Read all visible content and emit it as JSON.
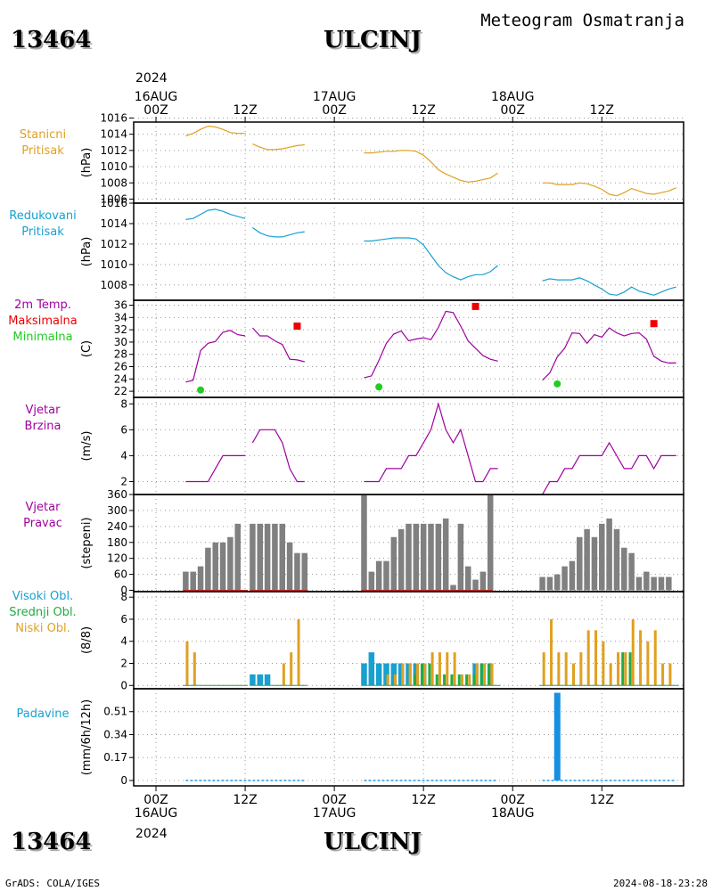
{
  "header": {
    "station_id": "13464",
    "station_name": "ULCINJ",
    "subtitle": "Meteogram Osmatranja"
  },
  "footer": {
    "left": "GrADS: COLA/IGES",
    "right": "2024-08-18-23:28"
  },
  "time_axis": {
    "year_label": "2024",
    "ticks": [
      {
        "hour": 0,
        "lines": [
          "16AUG",
          "00Z"
        ]
      },
      {
        "hour": 12,
        "lines": [
          "12Z"
        ]
      },
      {
        "hour": 24,
        "lines": [
          "17AUG",
          "00Z"
        ]
      },
      {
        "hour": 36,
        "lines": [
          "12Z"
        ]
      },
      {
        "hour": 48,
        "lines": [
          "18AUG",
          "00Z"
        ]
      },
      {
        "hour": 60,
        "lines": [
          "12Z"
        ]
      }
    ],
    "range_hours": [
      -3,
      71
    ]
  },
  "colors": {
    "pressure": "#e0a020",
    "reduced": "#18a0d0",
    "temp": "#a000a0",
    "tmax": "#ee0000",
    "tmin": "#22cc22",
    "wind": "#a000a0",
    "dir_bar": "#808080",
    "cloud_high": "#18a0d0",
    "cloud_mid": "#22aa44",
    "cloud_low": "#e0a020",
    "precip": "#1890e0"
  },
  "chart_data": [
    {
      "type": "line",
      "panel": "station_pressure",
      "labels": [
        "Stanicni",
        "Pritisak"
      ],
      "ylabel": "(hPa)",
      "ylim": [
        1005.5,
        1015.5
      ],
      "yticks": [
        1006,
        1008,
        1010,
        1012,
        1014,
        1016
      ],
      "series": [
        {
          "x": [
            4,
            5,
            6,
            7,
            8,
            9,
            10,
            11,
            12
          ],
          "y": [
            1013.8,
            1014.1,
            1014.6,
            1015.0,
            1014.9,
            1014.6,
            1014.2,
            1014.1,
            1014.1
          ]
        },
        {
          "x": [
            13,
            14,
            15,
            16,
            17,
            18,
            19,
            20
          ],
          "y": [
            1012.8,
            1012.4,
            1012.1,
            1012.1,
            1012.2,
            1012.4,
            1012.6,
            1012.7
          ]
        },
        {
          "x": [
            28,
            29,
            30,
            31,
            32,
            33,
            34,
            35,
            36,
            37,
            38,
            39,
            40,
            41,
            42,
            43,
            44,
            45,
            46
          ],
          "y": [
            1011.7,
            1011.7,
            1011.8,
            1011.9,
            1011.9,
            1012.0,
            1012.0,
            1011.9,
            1011.4,
            1010.6,
            1009.6,
            1009.1,
            1008.7,
            1008.3,
            1008.1,
            1008.2,
            1008.4,
            1008.6,
            1009.2
          ]
        },
        {
          "x": [
            52,
            53,
            54,
            55,
            56,
            57,
            58,
            59,
            60,
            61,
            62,
            63,
            64,
            65,
            66,
            67,
            68,
            69,
            70
          ],
          "y": [
            1008.0,
            1008.0,
            1007.8,
            1007.8,
            1007.8,
            1008.0,
            1007.9,
            1007.6,
            1007.2,
            1006.6,
            1006.4,
            1006.8,
            1007.3,
            1007.0,
            1006.7,
            1006.6,
            1006.8,
            1007.0,
            1007.4
          ]
        }
      ]
    },
    {
      "type": "line",
      "panel": "reduced_pressure",
      "labels": [
        "Redukovani",
        "Pritisak"
      ],
      "ylabel": "(hPa)",
      "ylim": [
        1006.5,
        1016
      ],
      "yticks": [
        1008,
        1010,
        1012,
        1014,
        1016
      ],
      "series": [
        {
          "x": [
            4,
            5,
            6,
            7,
            8,
            9,
            10,
            11,
            12
          ],
          "y": [
            1014.4,
            1014.5,
            1014.9,
            1015.3,
            1015.4,
            1015.2,
            1014.9,
            1014.7,
            1014.5
          ]
        },
        {
          "x": [
            13,
            14,
            15,
            16,
            17,
            18,
            19,
            20
          ],
          "y": [
            1013.6,
            1013.1,
            1012.8,
            1012.7,
            1012.7,
            1012.9,
            1013.1,
            1013.2
          ]
        },
        {
          "x": [
            28,
            29,
            30,
            31,
            32,
            33,
            34,
            35,
            36,
            37,
            38,
            39,
            40,
            41,
            42,
            43,
            44,
            45,
            46
          ],
          "y": [
            1012.3,
            1012.3,
            1012.4,
            1012.5,
            1012.6,
            1012.6,
            1012.6,
            1012.5,
            1011.9,
            1010.9,
            1009.9,
            1009.2,
            1008.8,
            1008.5,
            1008.8,
            1009.0,
            1009.0,
            1009.3,
            1009.9
          ]
        },
        {
          "x": [
            52,
            53,
            54,
            55,
            56,
            57,
            58,
            59,
            60,
            61,
            62,
            63,
            64,
            65,
            66,
            67,
            68,
            69,
            70
          ],
          "y": [
            1008.4,
            1008.6,
            1008.5,
            1008.5,
            1008.5,
            1008.7,
            1008.4,
            1008.0,
            1007.6,
            1007.1,
            1007.0,
            1007.3,
            1007.8,
            1007.4,
            1007.2,
            1007.0,
            1007.3,
            1007.6,
            1007.8
          ]
        }
      ]
    },
    {
      "type": "line",
      "panel": "temperature",
      "labels": [
        "2m Temp.",
        "Maksimalna",
        "Minimalna"
      ],
      "ylabel": "(C)",
      "ylim": [
        21,
        36.8
      ],
      "yticks": [
        22,
        24,
        26,
        28,
        30,
        32,
        34,
        36
      ],
      "series": [
        {
          "x": [
            4,
            5,
            6,
            7,
            8,
            9,
            10,
            11,
            12
          ],
          "y": [
            23.5,
            23.8,
            28.6,
            29.8,
            30.1,
            31.6,
            31.9,
            31.2,
            31.0
          ]
        },
        {
          "x": [
            13,
            14,
            15,
            16,
            17,
            18,
            19,
            20
          ],
          "y": [
            32.3,
            31.0,
            31.0,
            30.2,
            29.6,
            27.2,
            27.1,
            26.8
          ]
        },
        {
          "x": [
            28,
            29,
            30,
            31,
            32,
            33,
            34,
            35,
            36,
            37,
            38,
            39,
            40,
            41,
            42,
            43,
            44,
            45,
            46
          ],
          "y": [
            24.2,
            24.5,
            27.0,
            29.8,
            31.3,
            31.8,
            30.2,
            30.5,
            30.7,
            30.4,
            32.4,
            35.0,
            34.8,
            32.6,
            30.2,
            29.0,
            27.8,
            27.2,
            26.9
          ]
        },
        {
          "x": [
            52,
            53,
            54,
            55,
            56,
            57,
            58,
            59,
            60,
            61,
            62,
            63,
            64,
            65,
            66,
            67,
            68,
            69,
            70
          ],
          "y": [
            23.8,
            25.0,
            27.6,
            29.0,
            31.5,
            31.4,
            29.8,
            31.2,
            30.8,
            32.3,
            31.5,
            31.0,
            31.4,
            31.5,
            30.5,
            27.7,
            26.9,
            26.6,
            26.6
          ]
        }
      ],
      "tmax": [
        {
          "x": 19,
          "y": 32.6
        },
        {
          "x": 43,
          "y": 35.8
        },
        {
          "x": 67,
          "y": 33.0
        }
      ],
      "tmin": [
        {
          "x": 6,
          "y": 22.2
        },
        {
          "x": 30,
          "y": 22.7
        },
        {
          "x": 54,
          "y": 23.2
        }
      ]
    },
    {
      "type": "line",
      "panel": "wind_speed",
      "labels": [
        "Vjetar",
        "Brzina"
      ],
      "ylabel": "(m/s)",
      "ylim": [
        1,
        8.5
      ],
      "yticks": [
        2,
        4,
        6,
        8
      ],
      "series": [
        {
          "x": [
            4,
            5,
            6,
            7,
            8,
            9,
            10,
            11,
            12
          ],
          "y": [
            2,
            2,
            2,
            2,
            3,
            4,
            4,
            4,
            4
          ]
        },
        {
          "x": [
            13,
            14,
            15,
            16,
            17,
            18,
            19,
            20
          ],
          "y": [
            5,
            6,
            6,
            6,
            5,
            3,
            2,
            2
          ]
        },
        {
          "x": [
            28,
            29,
            30,
            31,
            32,
            33,
            34,
            35,
            36,
            37,
            38,
            39,
            40,
            41,
            42,
            43,
            44,
            45,
            46
          ],
          "y": [
            2,
            2,
            2,
            3,
            3,
            3,
            4,
            4,
            5,
            6,
            8,
            6,
            5,
            6,
            4,
            2,
            2,
            3,
            3
          ]
        },
        {
          "x": [
            52,
            53,
            54,
            55,
            56,
            57,
            58,
            59,
            60,
            61,
            62,
            63,
            64,
            65,
            66,
            67,
            68,
            69,
            70
          ],
          "y": [
            1,
            2,
            2,
            3,
            3,
            4,
            4,
            4,
            4,
            5,
            4,
            3,
            3,
            4,
            4,
            3,
            4,
            4,
            4
          ]
        }
      ]
    },
    {
      "type": "bar",
      "panel": "wind_direction",
      "labels": [
        "Vjetar",
        "Pravac"
      ],
      "ylabel": "(stepeni)",
      "ylim": [
        -5,
        360
      ],
      "yticks": [
        0,
        60,
        120,
        180,
        240,
        300,
        360
      ],
      "x": [
        4,
        5,
        6,
        7,
        8,
        9,
        10,
        11,
        13,
        14,
        15,
        16,
        17,
        18,
        19,
        20,
        28,
        29,
        30,
        31,
        32,
        33,
        34,
        35,
        36,
        37,
        38,
        39,
        40,
        41,
        42,
        43,
        44,
        45,
        52,
        53,
        54,
        55,
        56,
        57,
        58,
        59,
        60,
        61,
        62,
        63,
        64,
        65,
        66,
        67,
        68,
        69
      ],
      "values": [
        70,
        70,
        90,
        160,
        180,
        180,
        200,
        250,
        250,
        250,
        250,
        250,
        250,
        180,
        140,
        140,
        360,
        70,
        110,
        110,
        200,
        230,
        250,
        250,
        250,
        250,
        250,
        270,
        20,
        250,
        90,
        40,
        70,
        360,
        50,
        50,
        60,
        90,
        110,
        200,
        230,
        200,
        250,
        270,
        230,
        160,
        140,
        50,
        70,
        50,
        50,
        50
      ]
    },
    {
      "type": "bar",
      "panel": "clouds",
      "labels": [
        "Visoki Obl.",
        "Srednji Obl.",
        "Niski Obl."
      ],
      "ylabel": "(8/8)",
      "ylim": [
        -0.3,
        8.5
      ],
      "yticks": [
        0,
        2,
        4,
        6,
        8
      ],
      "x": [
        4,
        5,
        6,
        7,
        8,
        9,
        10,
        11,
        13,
        14,
        15,
        16,
        17,
        18,
        19,
        20,
        28,
        29,
        30,
        31,
        32,
        33,
        34,
        35,
        36,
        37,
        38,
        39,
        40,
        41,
        42,
        43,
        44,
        45,
        52,
        53,
        54,
        55,
        56,
        57,
        58,
        59,
        60,
        61,
        62,
        63,
        64,
        65,
        66,
        67,
        68,
        69
      ],
      "series": [
        {
          "name": "Visoki Obl.",
          "values": [
            0,
            0,
            0,
            0,
            0,
            0,
            0,
            0,
            1,
            1,
            1,
            0,
            0,
            0,
            0,
            0,
            2,
            3,
            2,
            2,
            2,
            2,
            2,
            2,
            2,
            0,
            0,
            0,
            0,
            0,
            0,
            2,
            2,
            2,
            0,
            0,
            0,
            0,
            0,
            0,
            0,
            0,
            0,
            0,
            0,
            0,
            0,
            0,
            0,
            0,
            0,
            0
          ]
        },
        {
          "name": "Srednji Obl.",
          "values": [
            0,
            0,
            0,
            0,
            0,
            0,
            0,
            0,
            0,
            0,
            0,
            0,
            0,
            0,
            0,
            0,
            0,
            0,
            0,
            0,
            0,
            0,
            0,
            1,
            2,
            2,
            1,
            1,
            1,
            1,
            1,
            1,
            2,
            2,
            0,
            0,
            0,
            0,
            0,
            0,
            0,
            0,
            0,
            0,
            0,
            3,
            3,
            0,
            0,
            0,
            0,
            0
          ]
        },
        {
          "name": "Niski Obl.",
          "values": [
            4,
            3,
            0,
            0,
            0,
            0,
            0,
            0,
            0,
            0,
            0,
            0,
            2,
            3,
            6,
            0,
            0,
            0,
            0,
            1,
            1,
            2,
            2,
            2,
            2,
            3,
            3,
            3,
            3,
            1,
            1,
            2,
            2,
            2,
            3,
            6,
            3,
            3,
            2,
            3,
            5,
            5,
            4,
            2,
            3,
            3,
            6,
            5,
            4,
            5,
            2,
            2
          ]
        }
      ]
    },
    {
      "type": "bar",
      "panel": "precipitation",
      "labels": [
        "Padavine"
      ],
      "ylabel": "(mm/6h/12h)",
      "ylim": [
        -0.04,
        0.68
      ],
      "yticks": [
        0,
        0.17,
        0.34,
        0.51
      ],
      "ytick_labels": [
        "0",
        "0.17",
        "0.34",
        "0.51"
      ],
      "x": [
        54
      ],
      "values": [
        0.65
      ]
    }
  ]
}
